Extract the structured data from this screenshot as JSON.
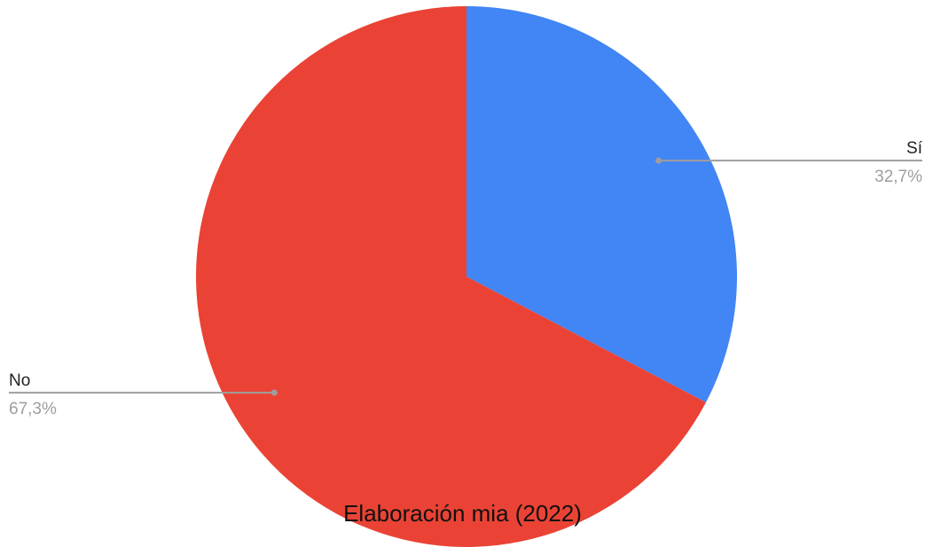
{
  "chart_data": {
    "type": "pie",
    "slices": [
      {
        "label": "Sí",
        "value": 32.7,
        "display": "32,7%",
        "color": "#4285F4"
      },
      {
        "label": "No",
        "value": 67.3,
        "display": "67,3%",
        "color": "#EA4335"
      }
    ],
    "start_angle_deg": 0,
    "direction": "clockwise",
    "leader_color": "#9e9e9e"
  },
  "caption": "Elaboración mia (2022)"
}
